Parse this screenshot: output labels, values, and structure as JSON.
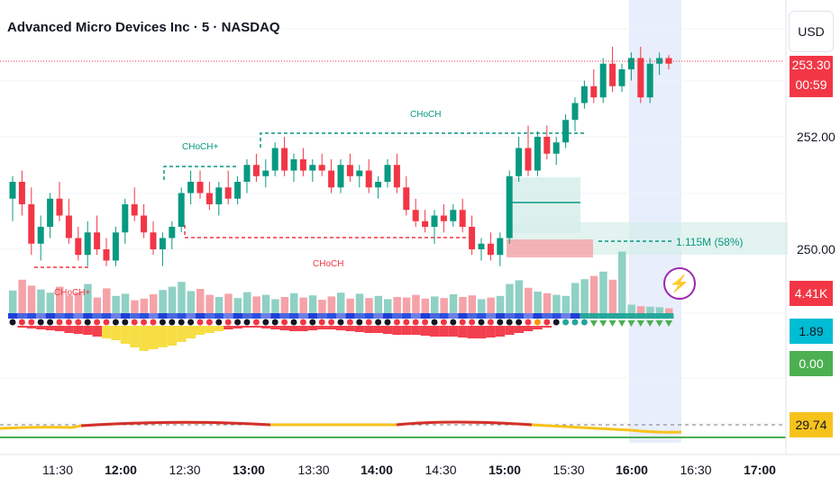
{
  "header": {
    "title": "Advanced Micro Devices Inc · 5 · NASDAQ",
    "currency": "USD"
  },
  "price_axis": {
    "labels": [
      "252.00",
      "250.00"
    ]
  },
  "time_axis": {
    "labels": [
      {
        "text": "11:30",
        "bold": false
      },
      {
        "text": "12:00",
        "bold": true
      },
      {
        "text": "12:30",
        "bold": false
      },
      {
        "text": "13:00",
        "bold": true
      },
      {
        "text": "13:30",
        "bold": false
      },
      {
        "text": "14:00",
        "bold": true
      },
      {
        "text": "14:30",
        "bold": false
      },
      {
        "text": "15:00",
        "bold": true
      },
      {
        "text": "15:30",
        "bold": false
      },
      {
        "text": "16:00",
        "bold": true
      },
      {
        "text": "16:30",
        "bold": false
      },
      {
        "text": "17:00",
        "bold": true
      }
    ]
  },
  "tags": {
    "last_price": "253.30",
    "countdown": "00:59",
    "volume": "4.41K",
    "osc1": "1.89",
    "osc2": "0.00",
    "rsi": "29.74"
  },
  "annotations": {
    "choch_top": "CHoCH",
    "choch_plus_upper": "CHoCH+",
    "choch_red_mid": "CHoCH",
    "choch_plus_lower": "CHoCH+",
    "volume_profile": "1.115M (58%)"
  },
  "colors": {
    "up": "#089981",
    "down": "#f23645",
    "up_light": "#8fd1c4",
    "down_light": "#f5a3a8",
    "rsi": "#f7c21c",
    "highlight": "#e8eefb"
  },
  "chart_data": {
    "type": "candlestick",
    "interval": "5",
    "yrange": [
      249.4,
      253.85
    ],
    "candles": [
      [
        250.9,
        251.3,
        250.5,
        251.2
      ],
      [
        251.2,
        251.4,
        250.6,
        250.8
      ],
      [
        250.8,
        251.1,
        249.9,
        250.1
      ],
      [
        250.1,
        250.6,
        249.8,
        250.4
      ],
      [
        250.4,
        251.0,
        250.2,
        250.9
      ],
      [
        250.9,
        251.2,
        250.5,
        250.6
      ],
      [
        250.6,
        250.9,
        250.1,
        250.2
      ],
      [
        250.2,
        250.4,
        249.8,
        249.9
      ],
      [
        249.9,
        250.5,
        249.7,
        250.3
      ],
      [
        250.3,
        250.6,
        249.9,
        250.0
      ],
      [
        250.0,
        250.2,
        249.7,
        249.8
      ],
      [
        249.8,
        250.4,
        249.7,
        250.3
      ],
      [
        250.3,
        250.9,
        250.1,
        250.8
      ],
      [
        250.8,
        251.1,
        250.5,
        250.6
      ],
      [
        250.6,
        250.8,
        250.2,
        250.3
      ],
      [
        250.3,
        250.5,
        249.9,
        250.0
      ],
      [
        250.0,
        250.3,
        249.7,
        250.2
      ],
      [
        250.2,
        250.5,
        250.0,
        250.4
      ],
      [
        250.4,
        251.1,
        250.3,
        251.0
      ],
      [
        251.0,
        251.4,
        250.8,
        251.2
      ],
      [
        251.2,
        251.4,
        250.9,
        251.0
      ],
      [
        251.0,
        251.2,
        250.7,
        250.8
      ],
      [
        250.8,
        251.2,
        250.6,
        251.1
      ],
      [
        251.1,
        251.4,
        250.8,
        250.9
      ],
      [
        250.9,
        251.3,
        250.8,
        251.2
      ],
      [
        251.2,
        251.6,
        251.0,
        251.5
      ],
      [
        251.5,
        251.7,
        251.2,
        251.3
      ],
      [
        251.3,
        251.6,
        251.1,
        251.4
      ],
      [
        251.4,
        251.9,
        251.3,
        251.8
      ],
      [
        251.8,
        252.0,
        251.3,
        251.4
      ],
      [
        251.4,
        251.7,
        251.2,
        251.6
      ],
      [
        251.6,
        251.8,
        251.3,
        251.4
      ],
      [
        251.4,
        251.6,
        251.2,
        251.5
      ],
      [
        251.5,
        251.7,
        251.3,
        251.4
      ],
      [
        251.4,
        251.6,
        251.0,
        251.1
      ],
      [
        251.1,
        251.6,
        251.0,
        251.5
      ],
      [
        251.5,
        251.7,
        251.2,
        251.3
      ],
      [
        251.3,
        251.5,
        251.1,
        251.4
      ],
      [
        251.4,
        251.6,
        251.0,
        251.1
      ],
      [
        251.1,
        251.3,
        250.9,
        251.2
      ],
      [
        251.2,
        251.6,
        251.1,
        251.5
      ],
      [
        251.5,
        251.7,
        251.0,
        251.1
      ],
      [
        251.1,
        251.3,
        250.6,
        250.7
      ],
      [
        250.7,
        250.9,
        250.4,
        250.5
      ],
      [
        250.5,
        250.7,
        250.3,
        250.4
      ],
      [
        250.4,
        250.7,
        250.1,
        250.6
      ],
      [
        250.6,
        250.8,
        250.3,
        250.5
      ],
      [
        250.5,
        250.8,
        250.4,
        250.7
      ],
      [
        250.7,
        250.9,
        250.3,
        250.4
      ],
      [
        250.4,
        250.6,
        249.9,
        250.0
      ],
      [
        250.0,
        250.2,
        249.8,
        250.1
      ],
      [
        250.1,
        250.3,
        249.8,
        249.9
      ],
      [
        249.9,
        250.3,
        249.7,
        250.2
      ],
      [
        250.2,
        251.4,
        250.1,
        251.3
      ],
      [
        251.3,
        252.0,
        251.2,
        251.8
      ],
      [
        251.8,
        252.2,
        251.3,
        251.4
      ],
      [
        251.4,
        252.1,
        251.3,
        252.0
      ],
      [
        252.0,
        252.2,
        251.6,
        251.7
      ],
      [
        251.7,
        252.0,
        251.5,
        251.9
      ],
      [
        251.9,
        252.4,
        251.8,
        252.3
      ],
      [
        252.3,
        252.7,
        252.1,
        252.6
      ],
      [
        252.6,
        253.0,
        252.5,
        252.9
      ],
      [
        252.9,
        253.2,
        252.6,
        252.7
      ],
      [
        252.7,
        253.4,
        252.6,
        253.3
      ],
      [
        253.3,
        253.6,
        252.8,
        252.9
      ],
      [
        252.9,
        253.3,
        252.8,
        253.2
      ],
      [
        253.2,
        253.5,
        253.0,
        253.4
      ],
      [
        253.4,
        253.6,
        252.6,
        252.7
      ],
      [
        252.7,
        253.4,
        252.6,
        253.3
      ],
      [
        253.3,
        253.5,
        253.1,
        253.4
      ],
      [
        253.4,
        253.45,
        253.2,
        253.3
      ]
    ],
    "volume": [
      4.2,
      6.2,
      5.1,
      4.4,
      3.8,
      4.9,
      3.3,
      3.9,
      5.4,
      2.9,
      4.6,
      3.2,
      3.6,
      2.4,
      2.7,
      3.5,
      4.3,
      4.9,
      5.8,
      4.1,
      4.5,
      3.4,
      3.0,
      3.6,
      2.8,
      3.9,
      3.1,
      3.4,
      2.6,
      3.0,
      3.7,
      2.9,
      3.3,
      2.5,
      3.1,
      3.8,
      2.7,
      3.6,
      2.8,
      3.2,
      2.6,
      3.0,
      2.9,
      3.4,
      2.7,
      3.1,
      2.8,
      3.5,
      3.0,
      3.3,
      2.6,
      2.9,
      3.2,
      5.4,
      6.1,
      4.7,
      4.0,
      3.7,
      3.4,
      3.2,
      5.6,
      6.3,
      6.9,
      7.7,
      6.2,
      11.4,
      1.6,
      1.3,
      1.2,
      1.1,
      0.9
    ],
    "volume_unit": "K",
    "rsi_last": 29.74
  }
}
